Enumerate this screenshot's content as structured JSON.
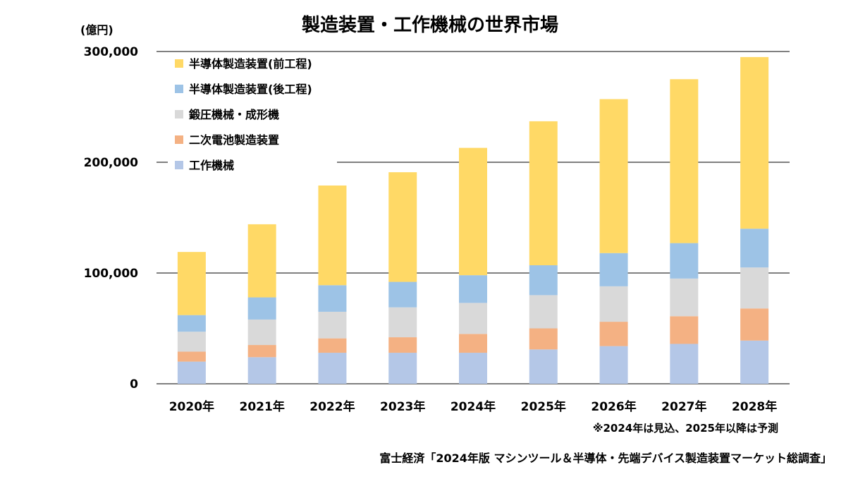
{
  "chart_data": {
    "type": "bar",
    "stacked": true,
    "title": "製造装置・工作機械の世界市場",
    "unit_label": "(億円)",
    "categories": [
      "2020年",
      "2021年",
      "2022年",
      "2023年",
      "2024年",
      "2025年",
      "2026年",
      "2027年",
      "2028年"
    ],
    "series": [
      {
        "name": "工作機械",
        "color": "#B4C7E7",
        "values": [
          20000,
          24000,
          28000,
          28000,
          28000,
          31000,
          34000,
          36000,
          39000
        ]
      },
      {
        "name": "二次電池製造装置",
        "color": "#F4B183",
        "values": [
          9000,
          11000,
          13000,
          14000,
          17000,
          19000,
          22000,
          25000,
          29000
        ]
      },
      {
        "name": "鍛圧機械・成形機",
        "color": "#D9D9D9",
        "values": [
          18000,
          23000,
          24000,
          27000,
          28000,
          30000,
          32000,
          34000,
          37000
        ]
      },
      {
        "name": "半導体製造装置(後工程)",
        "color": "#9DC3E6",
        "values": [
          15000,
          20000,
          24000,
          23000,
          25000,
          27000,
          30000,
          32000,
          35000
        ]
      },
      {
        "name": "半導体製造装置(前工程)",
        "color": "#FFD966",
        "values": [
          57000,
          66000,
          90000,
          99000,
          115000,
          130000,
          139000,
          148000,
          155000
        ]
      }
    ],
    "legend_order": [
      "半導体製造装置(前工程)",
      "半導体製造装置(後工程)",
      "鍛圧機械・成形機",
      "二次電池製造装置",
      "工作機械"
    ],
    "legend_position": "top-left",
    "ylim": [
      0,
      300000
    ],
    "yticks": [
      0,
      100000,
      200000,
      300000
    ],
    "ytick_labels": [
      "0",
      "100,000",
      "200,000",
      "300,000"
    ],
    "grid": true,
    "note": "※2024年は見込、2025年以降は予測",
    "source": "富士経済「2024年版 マシンツール＆半導体・先端デバイス製造装置マーケット総調査」"
  }
}
